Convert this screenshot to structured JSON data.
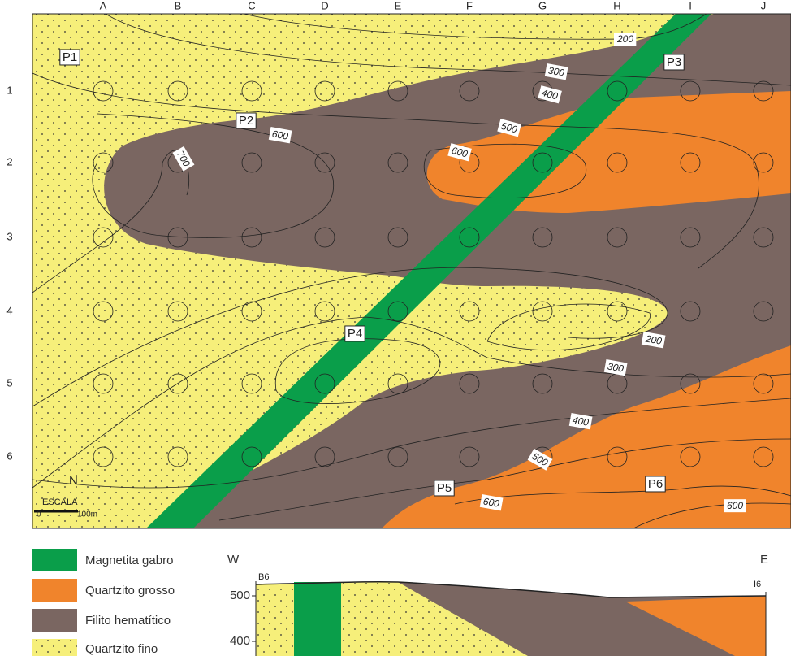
{
  "map": {
    "columns": [
      "A",
      "B",
      "C",
      "D",
      "E",
      "F",
      "G",
      "H",
      "I",
      "J"
    ],
    "rows": [
      1,
      2,
      3,
      4,
      5,
      6
    ],
    "points": [
      "P1",
      "P2",
      "P3",
      "P4",
      "P5",
      "P6"
    ],
    "contour_labels": [
      200,
      300,
      400,
      500,
      600,
      600,
      700,
      200,
      300,
      400,
      500,
      600,
      600
    ],
    "scale": {
      "north": "N",
      "title": "ESCALA",
      "start": "0",
      "end": "100m"
    }
  },
  "legend": [
    "Magnetita gabro",
    "Quartzito grosso",
    "Filito hematítico",
    "Quartzito fino"
  ],
  "section": {
    "west": "W",
    "east": "E",
    "left_well": "B6",
    "right_well": "I6",
    "elevations": [
      500,
      400
    ]
  }
}
